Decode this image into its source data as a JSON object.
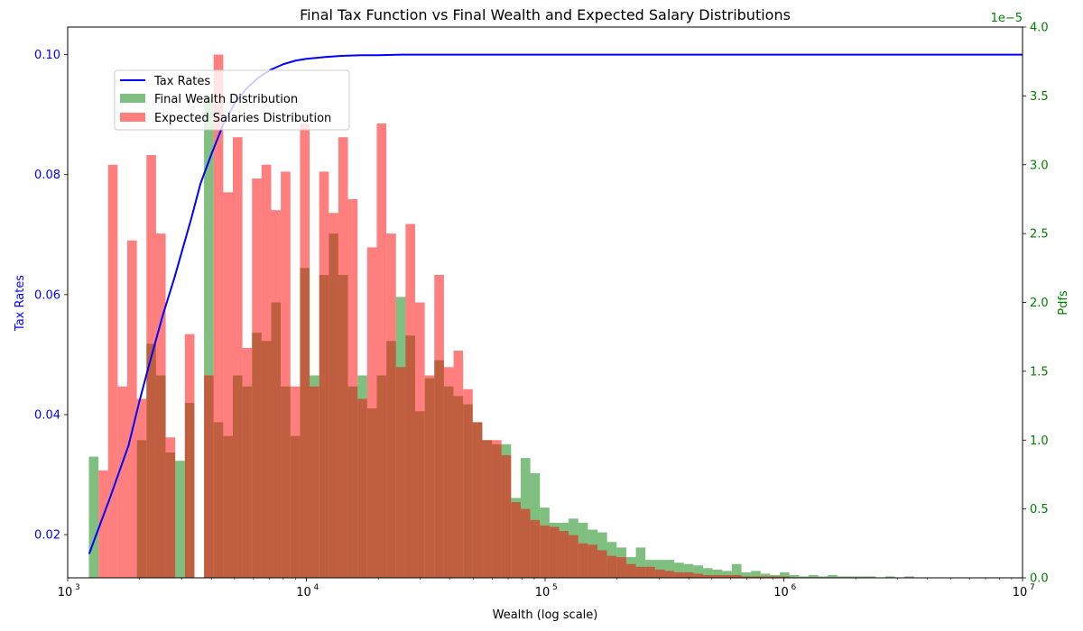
{
  "chart_data": {
    "type": "histogram",
    "title": "Final Tax Function vs Final Wealth and Expected Salary Distributions",
    "xlabel": "Wealth (log scale)",
    "xscale": "log",
    "xlim": [
      1000,
      10000000
    ],
    "x_ticks": [
      {
        "value": 1000,
        "label": "10",
        "exp": "3"
      },
      {
        "value": 10000,
        "label": "10",
        "exp": "4"
      },
      {
        "value": 100000,
        "label": "10",
        "exp": "5"
      },
      {
        "value": 1000000,
        "label": "10",
        "exp": "6"
      },
      {
        "value": 10000000,
        "label": "10",
        "exp": "7"
      }
    ],
    "y_left": {
      "label": "Tax Rates",
      "color": "#0000ff",
      "ylim": [
        0.0128,
        0.1046
      ],
      "ticks": [
        "0.02",
        "0.04",
        "0.06",
        "0.08",
        "0.10"
      ]
    },
    "y_right": {
      "label": "Pdfs",
      "color": "#008000",
      "ylim": [
        0,
        4.0
      ],
      "ticks": [
        "0.0",
        "0.5",
        "1.0",
        "1.5",
        "2.0",
        "2.5",
        "3.0",
        "3.5",
        "4.0"
      ],
      "offset_text": "1e−5"
    },
    "legend": {
      "placement": "upper-left",
      "entries": [
        {
          "name": "Tax Rates",
          "color": "#0000ff",
          "kind": "line"
        },
        {
          "name": "Final Wealth Distribution",
          "color": "#008000",
          "kind": "patch"
        },
        {
          "name": "Expected Salaries Distribution",
          "color": "#ff0000",
          "kind": "patch"
        }
      ]
    },
    "tax_rates": {
      "name": "Tax Rates",
      "color": "#0000ff",
      "x": [
        1230,
        1500,
        1800,
        2000,
        2200,
        2500,
        2800,
        3000,
        3300,
        3600,
        4000,
        4500,
        5000,
        5600,
        6300,
        7100,
        8000,
        9000,
        10000,
        12000,
        14000,
        17000,
        20000,
        25000,
        30000,
        40000,
        60000,
        100000,
        200000,
        500000,
        1000000,
        10000000
      ],
      "values": [
        0.0168,
        0.026,
        0.0349,
        0.0423,
        0.0485,
        0.0565,
        0.0628,
        0.067,
        0.0728,
        0.0785,
        0.0834,
        0.0885,
        0.0918,
        0.0943,
        0.0962,
        0.0975,
        0.0984,
        0.099,
        0.0993,
        0.0996,
        0.0998,
        0.0999,
        0.0999,
        0.1,
        0.1,
        0.1,
        0.1,
        0.1,
        0.1,
        0.1,
        0.1,
        0.1
      ]
    },
    "bins": {
      "log10_start": 3.0888,
      "log10_width": 0.0402,
      "count": 100
    },
    "series": [
      {
        "name": "Final Wealth Distribution",
        "color": "#008000",
        "opacity": 0.5,
        "values": [
          0.88,
          0.0,
          0.0,
          0.0,
          0.0,
          1.0,
          1.7,
          1.47,
          0.91,
          0.85,
          1.27,
          0.0,
          3.5,
          1.13,
          1.03,
          1.47,
          1.39,
          1.78,
          1.72,
          2.0,
          1.39,
          1.03,
          2.25,
          1.47,
          2.2,
          2.5,
          2.2,
          1.39,
          1.47,
          1.23,
          1.47,
          1.72,
          2.04,
          1.76,
          1.21,
          1.45,
          1.58,
          1.39,
          1.32,
          1.26,
          1.13,
          1.0,
          0.97,
          0.97,
          0.58,
          0.87,
          0.76,
          0.51,
          0.4,
          0.4,
          0.43,
          0.4,
          0.35,
          0.33,
          0.26,
          0.22,
          0.15,
          0.22,
          0.13,
          0.13,
          0.13,
          0.11,
          0.1,
          0.09,
          0.07,
          0.06,
          0.05,
          0.1,
          0.04,
          0.05,
          0.03,
          0.02,
          0.04,
          0.02,
          0.01,
          0.02,
          0.01,
          0.02,
          0.01,
          0.01,
          0.01,
          0.01,
          0.0,
          0.01,
          0.0,
          0.01,
          0.0,
          0.0,
          0.0,
          0.0,
          0.0,
          0.0,
          0.0,
          0.0,
          0.0,
          0.0,
          0.0,
          0.0,
          0.0,
          0.0
        ]
      },
      {
        "name": "Expected Salaries Distribution",
        "color": "#ff0000",
        "opacity": 0.5,
        "values": [
          0.0,
          0.78,
          3.0,
          1.39,
          2.45,
          1.3,
          3.07,
          2.5,
          1.02,
          0.0,
          1.77,
          0.0,
          1.47,
          3.8,
          2.8,
          3.2,
          1.67,
          2.9,
          3.0,
          2.67,
          2.95,
          1.39,
          3.3,
          1.39,
          2.95,
          2.65,
          3.2,
          2.75,
          1.3,
          2.4,
          3.3,
          2.5,
          1.53,
          2.57,
          2.0,
          1.47,
          2.2,
          1.53,
          1.65,
          1.37,
          1.13,
          1.0,
          1.0,
          0.89,
          0.55,
          0.5,
          0.42,
          0.38,
          0.37,
          0.34,
          0.31,
          0.25,
          0.24,
          0.2,
          0.16,
          0.15,
          0.1,
          0.08,
          0.08,
          0.06,
          0.05,
          0.04,
          0.04,
          0.03,
          0.02,
          0.02,
          0.02,
          0.02,
          0.01,
          0.01,
          0.01,
          0.01,
          0.01,
          0.0,
          0.0,
          0.0,
          0.0,
          0.0,
          0.0,
          0.0,
          0.0,
          0.0,
          0.0,
          0.0,
          0.0,
          0.0,
          0.0,
          0.0,
          0.0,
          0.0,
          0.0,
          0.0,
          0.0,
          0.0,
          0.0,
          0.0,
          0.0,
          0.0,
          0.0,
          0.0
        ]
      }
    ]
  }
}
